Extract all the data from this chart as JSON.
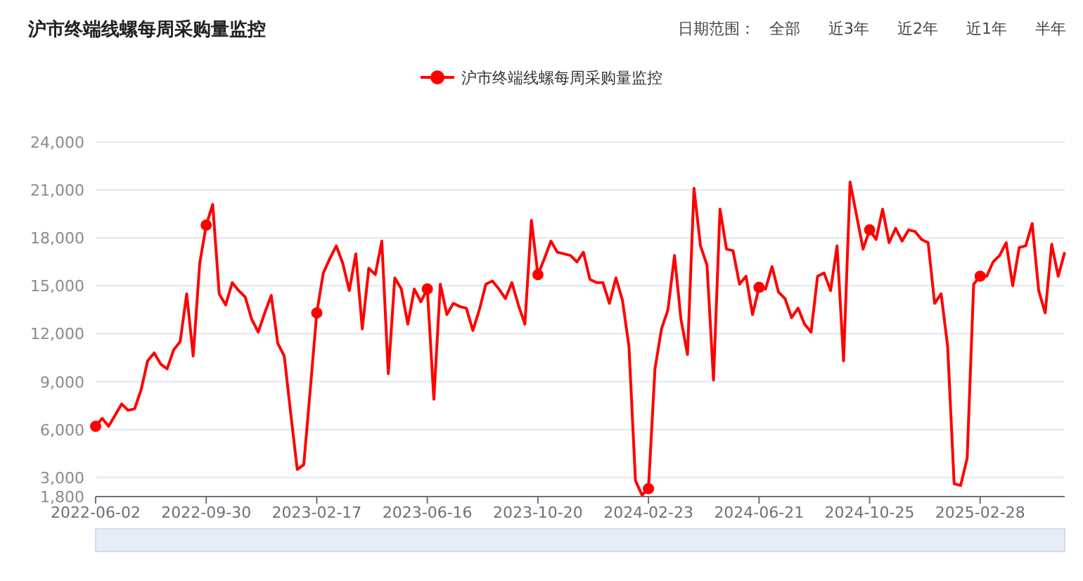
{
  "chart_data": {
    "type": "line",
    "title": "沪市终端线螺每周采购量监控",
    "annotations": [
      "日期范围：",
      "全部",
      "近3年",
      "近2年",
      "近1年",
      "半年"
    ],
    "categories": [
      "2022-06-02",
      null,
      null,
      null,
      null,
      null,
      null,
      null,
      null,
      null,
      null,
      null,
      null,
      null,
      null,
      null,
      null,
      "2022-09-30",
      null,
      null,
      null,
      null,
      null,
      null,
      null,
      null,
      null,
      null,
      null,
      null,
      null,
      null,
      null,
      null,
      "2023-02-17",
      null,
      null,
      null,
      null,
      null,
      null,
      null,
      null,
      null,
      null,
      null,
      null,
      null,
      null,
      null,
      null,
      "2023-06-16",
      null,
      null,
      null,
      null,
      null,
      null,
      null,
      null,
      null,
      null,
      null,
      null,
      null,
      null,
      null,
      null,
      "2023-10-20",
      null,
      null,
      null,
      null,
      null,
      null,
      null,
      null,
      null,
      null,
      null,
      null,
      null,
      null,
      null,
      null,
      "2024-02-23",
      null,
      null,
      null,
      null,
      null,
      null,
      null,
      null,
      null,
      null,
      null,
      null,
      null,
      null,
      null,
      null,
      "2024-06-21",
      null,
      null,
      null,
      null,
      null,
      null,
      null,
      null,
      null,
      null,
      null,
      null,
      null,
      null,
      null,
      null,
      "2024-10-25",
      null,
      null,
      null,
      null,
      null,
      null,
      null,
      null,
      null,
      null,
      null,
      null,
      null,
      null,
      null,
      null,
      "2025-02-28",
      null,
      null,
      null,
      null,
      null,
      null,
      null,
      null,
      null,
      null,
      null,
      null,
      null
    ],
    "series": [
      {
        "name": "沪市终端线螺每周采购量监控",
        "color": "#ff0000",
        "values": [
          6200,
          6700,
          6200,
          6900,
          7600,
          7200,
          7300,
          8500,
          10300,
          10800,
          10100,
          9800,
          11000,
          11500,
          14500,
          10600,
          16400,
          18800,
          20100,
          14500,
          13800,
          15200,
          14700,
          14300,
          12900,
          12100,
          13300,
          14400,
          11400,
          10600,
          7000,
          3500,
          3800,
          8500,
          13300,
          15800,
          16700,
          17500,
          16400,
          14700,
          17000,
          12300,
          16100,
          15700,
          17800,
          9500,
          15500,
          14800,
          12600,
          14800,
          14000,
          14800,
          7900,
          15100,
          13200,
          13900,
          13700,
          13600,
          12200,
          13500,
          15100,
          15300,
          14800,
          14200,
          15200,
          13800,
          12600,
          19100,
          15700,
          16700,
          17800,
          17100,
          17000,
          16900,
          16500,
          17100,
          15400,
          15200,
          15200,
          13900,
          15500,
          14100,
          11200,
          2800,
          1900,
          2300,
          9800,
          12300,
          13500,
          16900,
          12900,
          10700,
          21100,
          17500,
          16300,
          9100,
          19800,
          17300,
          17200,
          15100,
          15600,
          13200,
          14900,
          14800,
          16200,
          14600,
          14200,
          13000,
          13600,
          12600,
          12100,
          15600,
          15800,
          14700,
          17500,
          10300,
          21500,
          19400,
          17300,
          18500,
          17900,
          19800,
          17700,
          18600,
          17800,
          18500,
          18400,
          17900,
          17700,
          13900,
          14500,
          11200,
          2600,
          2500,
          4200,
          15100,
          15600,
          15600,
          16500,
          16900,
          17700,
          15000,
          17400,
          17500,
          18900,
          14700,
          13300,
          17600,
          15600,
          17100
        ]
      },
      {
        "type": "scatter",
        "color": "#ff0000",
        "values": [
          6200,
          null,
          null,
          null,
          null,
          null,
          null,
          null,
          null,
          null,
          null,
          null,
          null,
          null,
          null,
          null,
          null,
          18800,
          null,
          null,
          null,
          null,
          null,
          null,
          null,
          null,
          null,
          null,
          null,
          null,
          null,
          null,
          null,
          null,
          13300,
          null,
          null,
          null,
          null,
          null,
          null,
          null,
          null,
          null,
          null,
          null,
          null,
          null,
          null,
          null,
          null,
          14800,
          null,
          null,
          null,
          null,
          null,
          null,
          null,
          null,
          null,
          null,
          null,
          null,
          null,
          null,
          null,
          null,
          15700,
          null,
          null,
          null,
          null,
          null,
          null,
          null,
          null,
          null,
          null,
          null,
          null,
          null,
          null,
          null,
          null,
          2300,
          null,
          null,
          null,
          null,
          null,
          null,
          null,
          null,
          null,
          null,
          null,
          null,
          null,
          null,
          null,
          null,
          14900,
          null,
          null,
          null,
          null,
          null,
          null,
          null,
          null,
          null,
          null,
          null,
          null,
          null,
          null,
          null,
          null,
          18500,
          null,
          null,
          null,
          null,
          null,
          null,
          null,
          null,
          null,
          null,
          null,
          null,
          null,
          null,
          null,
          null,
          15600,
          null,
          null,
          null,
          null,
          null,
          null,
          null,
          null,
          null,
          null,
          null,
          null,
          null
        ]
      }
    ],
    "ylim": [
      1800,
      24000
    ],
    "yticks": [
      {
        "value": 1800,
        "label": "1,800"
      },
      {
        "value": 3000,
        "label": "3,000"
      },
      {
        "value": 6000,
        "label": "6,000"
      },
      {
        "value": 9000,
        "label": "9,000"
      },
      {
        "value": 12000,
        "label": "12,000"
      },
      {
        "value": 15000,
        "label": "15,000"
      },
      {
        "value": 18000,
        "label": "18,000"
      },
      {
        "value": 21000,
        "label": "21,000"
      },
      {
        "value": 24000,
        "label": "24,000"
      }
    ],
    "grid": "y",
    "legend": "top"
  }
}
